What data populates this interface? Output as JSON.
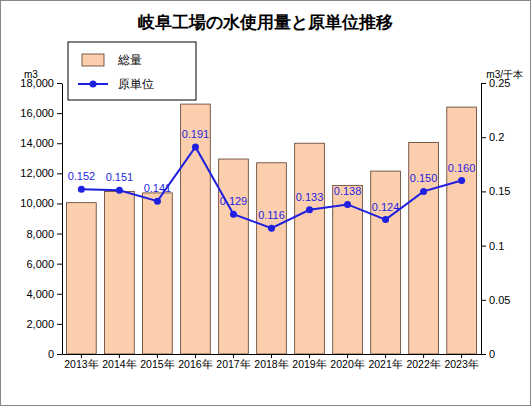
{
  "chart_data": {
    "type": "bar",
    "title": "岐阜工場の水使用量と原単位推移",
    "y_label": "m3",
    "y2_label": "m3/千本",
    "categories": [
      "2013年",
      "2014年",
      "2015年",
      "2016年",
      "2017年",
      "2018年",
      "2019年",
      "2020年",
      "2021年",
      "2022年",
      "2023年"
    ],
    "series": [
      {
        "name": "総量",
        "type": "bar",
        "color": "#fbcfae",
        "values": [
          10050,
          10800,
          10700,
          16600,
          12950,
          12700,
          14000,
          11200,
          12150,
          14050,
          16400
        ]
      },
      {
        "name": "原単位",
        "type": "line",
        "axis": "y2",
        "color": "#1f1fe0",
        "marker": "circle",
        "line_style": "solid",
        "data_labels": true,
        "values": [
          0.152,
          0.151,
          0.141,
          0.191,
          0.129,
          0.116,
          0.133,
          0.138,
          0.124,
          0.15,
          0.16
        ],
        "value_labels": [
          "0.152",
          "0.151",
          "0.141",
          "0.191",
          "0.129",
          "0.116",
          "0.133",
          "0.138",
          "0.124",
          "0.150",
          "0.160"
        ]
      }
    ],
    "ylim": [
      0,
      18000
    ],
    "yticks": [
      0,
      {
        "value": 2000,
        "label": "2,000"
      },
      {
        "value": 4000,
        "label": "4,000"
      },
      {
        "value": 6000,
        "label": "6,000"
      },
      {
        "value": 8000,
        "label": "8,000"
      },
      {
        "value": 10000,
        "label": "10,000"
      },
      {
        "value": 12000,
        "label": "12,000"
      },
      {
        "value": 14000,
        "label": "14,000"
      },
      {
        "value": 16000,
        "label": "16,000"
      },
      {
        "value": 18000,
        "label": "18,000"
      }
    ],
    "y2lim": [
      0,
      0.25
    ],
    "y2ticks": [
      0,
      0.05,
      0.1,
      0.15,
      0.2,
      0.25
    ],
    "legend": "upper left",
    "grid": false
  }
}
